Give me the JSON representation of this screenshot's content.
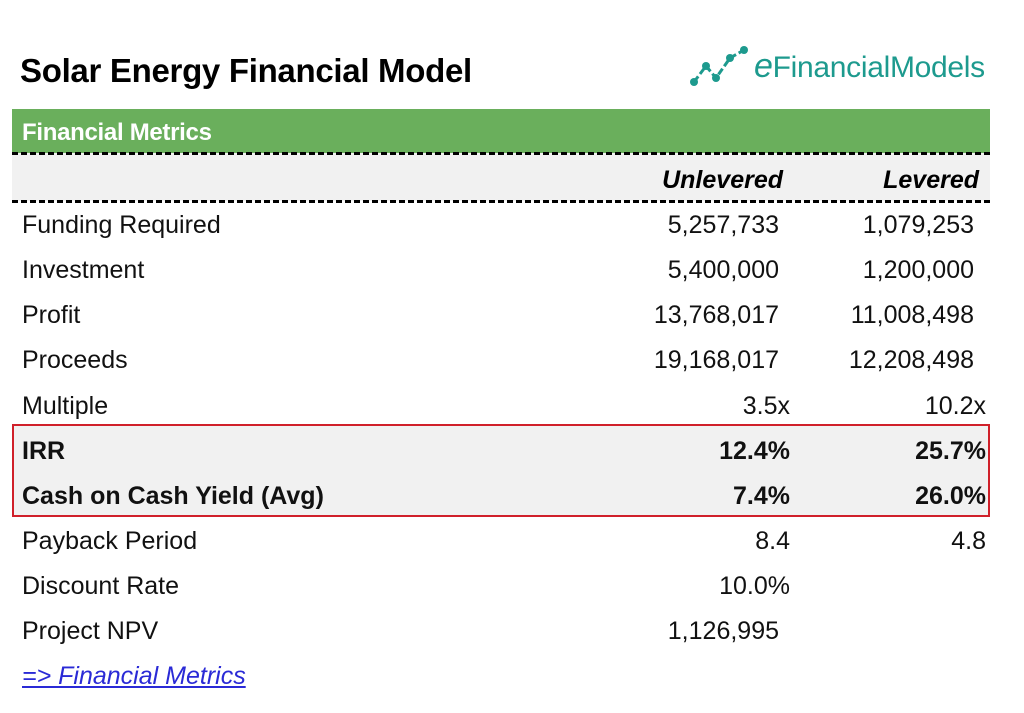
{
  "page": {
    "title": "Solar Energy Financial Model"
  },
  "brand": {
    "logo_e": "e",
    "logo_rest": "FinancialModels",
    "logo_icon": "trend-line-icon",
    "color": "#1d9a8e"
  },
  "section": {
    "title": "Financial Metrics",
    "banner_color": "#6aaf5c"
  },
  "table": {
    "columns": [
      "Unlevered",
      "Levered"
    ],
    "rows": [
      {
        "label": "Funding Required",
        "unlevered": "5,257,733",
        "levered": "1,079,253"
      },
      {
        "label": "Investment",
        "unlevered": "5,400,000",
        "levered": "1,200,000"
      },
      {
        "label": "Profit",
        "unlevered": "13,768,017",
        "levered": "11,008,498"
      },
      {
        "label": "Proceeds",
        "unlevered": "19,168,017",
        "levered": "12,208,498"
      },
      {
        "label": "Multiple",
        "unlevered": "3.5x",
        "levered": "10.2x"
      },
      {
        "label": "IRR",
        "unlevered": "12.4%",
        "levered": "25.7%",
        "highlight": true
      },
      {
        "label": "Cash on Cash Yield (Avg)",
        "unlevered": "7.4%",
        "levered": "26.0%",
        "highlight": true
      },
      {
        "label": "Payback Period",
        "unlevered": "8.4",
        "levered": "4.8"
      },
      {
        "label": "Discount Rate",
        "unlevered": "10.0%",
        "levered": ""
      },
      {
        "label": "Project NPV",
        "unlevered": "1,126,995",
        "levered": ""
      }
    ],
    "highlight_border_color": "#d0202a"
  },
  "link": {
    "label": "=> Financial Metrics"
  }
}
